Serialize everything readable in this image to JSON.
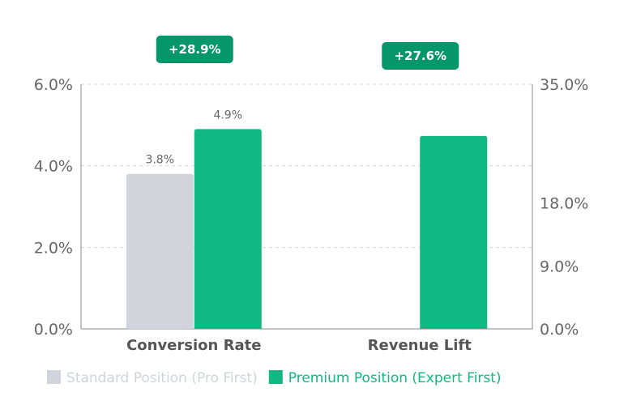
{
  "chart_data": {
    "type": "bar",
    "categories": [
      "Conversion Rate",
      "Revenue Lift"
    ],
    "series": [
      {
        "name": "Standard Position (Pro First)",
        "color": "#d1d5db",
        "axis": "left",
        "values": [
          3.8,
          null
        ],
        "labels": [
          "3.8%",
          ""
        ]
      },
      {
        "name": "Premium Position (Expert First)",
        "color": "#10b981",
        "axis": [
          "left",
          "right"
        ],
        "values": [
          4.9,
          27.6
        ],
        "labels": [
          "4.9%",
          ""
        ]
      }
    ],
    "annotations": [
      {
        "category": "Conversion Rate",
        "text": "+28.9%",
        "color": "#059669"
      },
      {
        "category": "Revenue Lift",
        "text": "+27.6%",
        "color": "#059669"
      }
    ],
    "left_axis": {
      "ylim": [
        0,
        6
      ],
      "ticks": [
        0,
        2,
        4,
        6
      ],
      "tick_labels": [
        "0.0%",
        "2.0%",
        "4.0%",
        "6.0%"
      ]
    },
    "right_axis": {
      "ylim": [
        0,
        35
      ],
      "ticks": [
        0,
        9,
        18,
        35
      ],
      "tick_labels": [
        "0.0%",
        "9.0%",
        "18.0%",
        "35.0%"
      ]
    },
    "grid": true,
    "legend_position": "bottom-center",
    "legend_label_colors": [
      "#d1d5db",
      "#10b981"
    ]
  }
}
